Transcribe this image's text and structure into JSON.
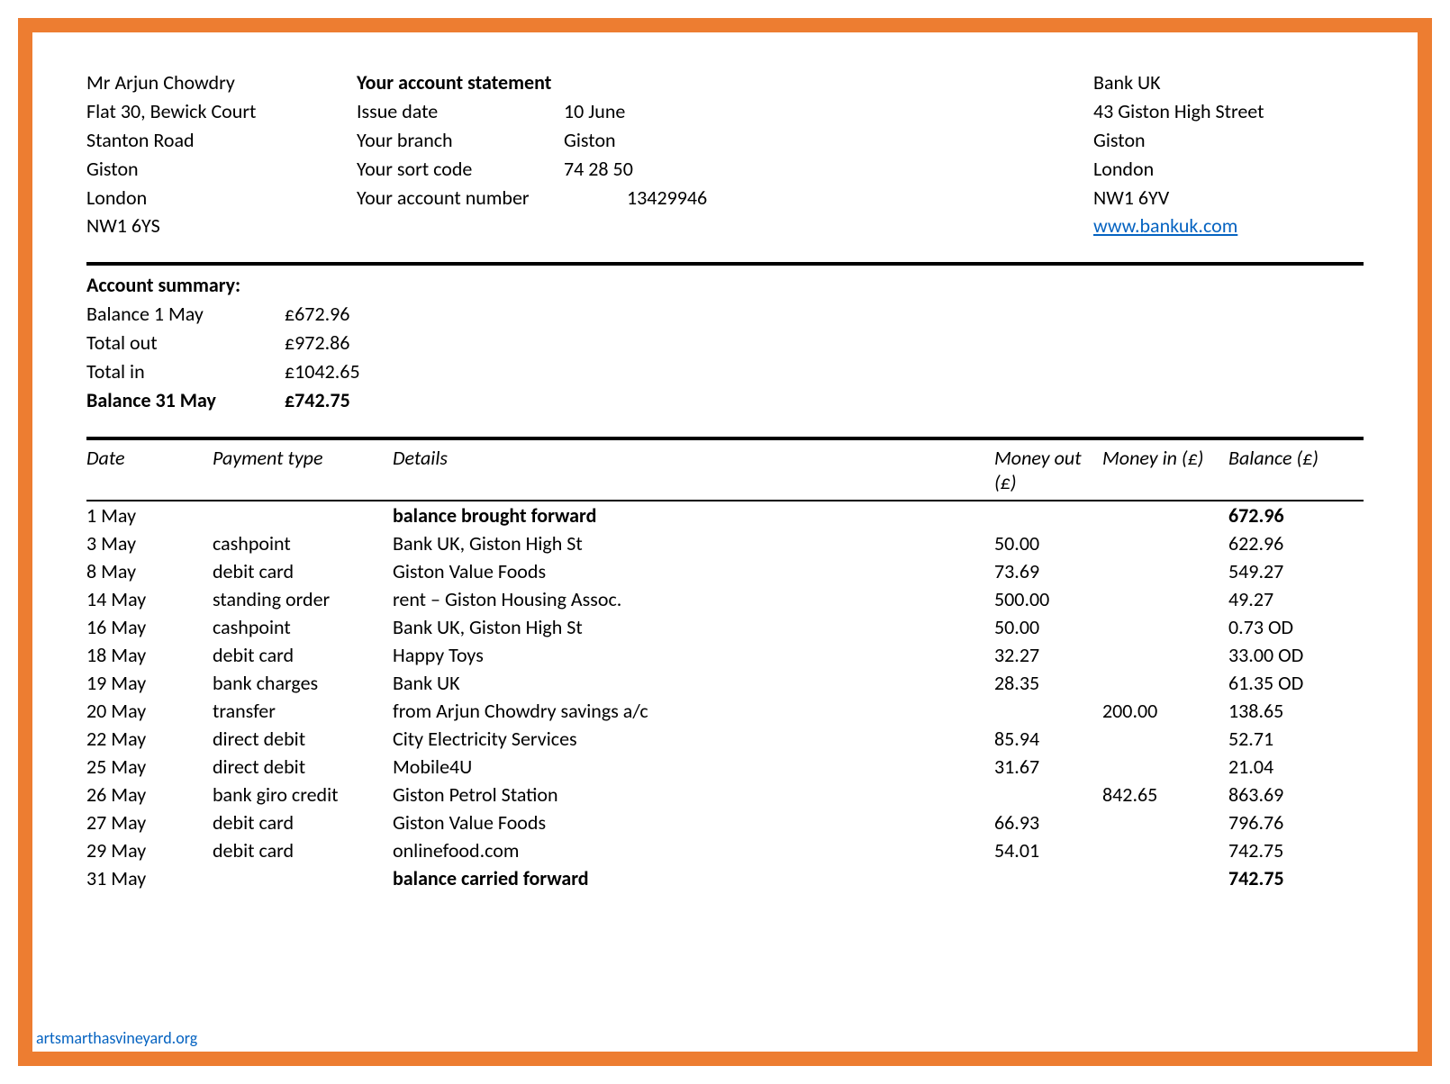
{
  "colors": {
    "border": "#ed7d31",
    "background": "#ffffff",
    "text": "#000000",
    "link": "#0563c1"
  },
  "customer_address": [
    "Mr Arjun Chowdry",
    "Flat 30, Bewick Court",
    "Stanton Road",
    "Giston",
    "London",
    "NW1 6YS"
  ],
  "statement_title": "Your account statement",
  "account_info": {
    "issue_date_label": "Issue date",
    "issue_date": "10 June",
    "branch_label": "Your branch",
    "branch": "Giston",
    "sort_code_label": "Your sort code",
    "sort_code": "74 28 50",
    "account_number_label": "Your account number",
    "account_number": "13429946"
  },
  "bank_address": [
    "Bank UK",
    "43 Giston High Street",
    "Giston",
    "London",
    "NW1 6YV"
  ],
  "bank_url": "www.bankuk.com",
  "summary_title": "Account summary:",
  "summary": [
    {
      "label": "Balance 1 May",
      "value": "£672.96",
      "bold": false
    },
    {
      "label": "Total out",
      "value": "£972.86",
      "bold": false
    },
    {
      "label": "Total in",
      "value": "£1042.65",
      "bold": false
    },
    {
      "label": "Balance 31 May",
      "value": "£742.75",
      "bold": true
    }
  ],
  "columns": {
    "date": "Date",
    "ptype": "Payment type",
    "details": "Details",
    "out": "Money out (£)",
    "in": "Money in (£)",
    "bal": "Balance (£)"
  },
  "transactions": [
    {
      "date": "1 May",
      "ptype": "",
      "details": "balance brought forward",
      "out": "",
      "in": "",
      "bal": "672.96",
      "bold": true
    },
    {
      "date": "3 May",
      "ptype": "cashpoint",
      "details": "Bank UK, Giston High St",
      "out": "50.00",
      "in": "",
      "bal": "622.96",
      "bold": false
    },
    {
      "date": "8 May",
      "ptype": "debit card",
      "details": "Giston Value Foods",
      "out": "73.69",
      "in": "",
      "bal": "549.27",
      "bold": false
    },
    {
      "date": "14 May",
      "ptype": "standing order",
      "details": "rent – Giston Housing Assoc.",
      "out": "500.00",
      "in": "",
      "bal": "49.27",
      "bold": false
    },
    {
      "date": "16 May",
      "ptype": "cashpoint",
      "details": "Bank UK, Giston High St",
      "out": "50.00",
      "in": "",
      "bal": "0.73 OD",
      "bold": false
    },
    {
      "date": "18 May",
      "ptype": "debit card",
      "details": "Happy Toys",
      "out": "32.27",
      "in": "",
      "bal": "33.00 OD",
      "bold": false
    },
    {
      "date": "19 May",
      "ptype": "bank charges",
      "details": "Bank UK",
      "out": "28.35",
      "in": "",
      "bal": "61.35 OD",
      "bold": false
    },
    {
      "date": "20 May",
      "ptype": "transfer",
      "details": "from Arjun Chowdry savings a/c",
      "out": "",
      "in": "200.00",
      "bal": "138.65",
      "bold": false
    },
    {
      "date": "22 May",
      "ptype": "direct debit",
      "details": "City Electricity Services",
      "out": "85.94",
      "in": "",
      "bal": "52.71",
      "bold": false
    },
    {
      "date": "25 May",
      "ptype": "direct debit",
      "details": "Mobile4U",
      "out": "31.67",
      "in": "",
      "bal": "21.04",
      "bold": false
    },
    {
      "date": "26 May",
      "ptype": "bank giro credit",
      "details": "Giston Petrol Station",
      "out": "",
      "in": "842.65",
      "bal": "863.69",
      "bold": false
    },
    {
      "date": "27 May",
      "ptype": "debit card",
      "details": "Giston Value Foods",
      "out": "66.93",
      "in": "",
      "bal": "796.76",
      "bold": false
    },
    {
      "date": "29 May",
      "ptype": "debit card",
      "details": "onlinefood.com",
      "out": "54.01",
      "in": "",
      "bal": "742.75",
      "bold": false
    },
    {
      "date": "31 May",
      "ptype": "",
      "details": "balance carried forward",
      "out": "",
      "in": "",
      "bal": "742.75",
      "bold": true
    }
  ],
  "footer": "artsmarthasvineyard.org"
}
